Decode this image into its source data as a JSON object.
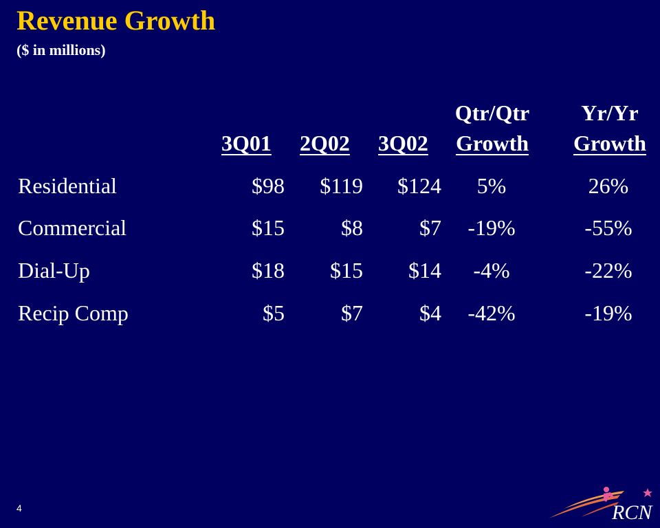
{
  "slide": {
    "title": "Revenue Growth",
    "subtitle": "($ in millions)",
    "page_number": "4"
  },
  "table": {
    "headers": {
      "col1": {
        "line2": "3Q01"
      },
      "col2": {
        "line2": "2Q02"
      },
      "col3": {
        "line2": "3Q02"
      },
      "col4": {
        "line1": "Qtr/Qtr",
        "line2": "Growth"
      },
      "col5": {
        "line1": "Yr/Yr",
        "line2": "Growth"
      }
    },
    "rows": [
      {
        "label": "Residential",
        "q301": "$98",
        "q202": "$119",
        "q302": "$124",
        "qoq": "5%",
        "yoy": "26%"
      },
      {
        "label": "Commercial",
        "q301": "$15",
        "q202": "$8",
        "q302": "$7",
        "qoq": "-19%",
        "yoy": "-55%"
      },
      {
        "label": "Dial-Up",
        "q301": "$18",
        "q202": "$15",
        "q302": "$14",
        "qoq": "-4%",
        "yoy": "-22%"
      },
      {
        "label": "Recip Comp",
        "q301": "$5",
        "q202": "$7",
        "q302": "$4",
        "qoq": "-42%",
        "yoy": "-19%"
      }
    ]
  },
  "logo": {
    "text": "RCN",
    "icon": "rcn-logo-icon",
    "colors": {
      "swoosh": "#E8703A",
      "star": "#E85A9A",
      "text": "#ffffff"
    }
  },
  "colors": {
    "background": "#000060",
    "title": "#FFCC00",
    "text": "#ffffff"
  }
}
